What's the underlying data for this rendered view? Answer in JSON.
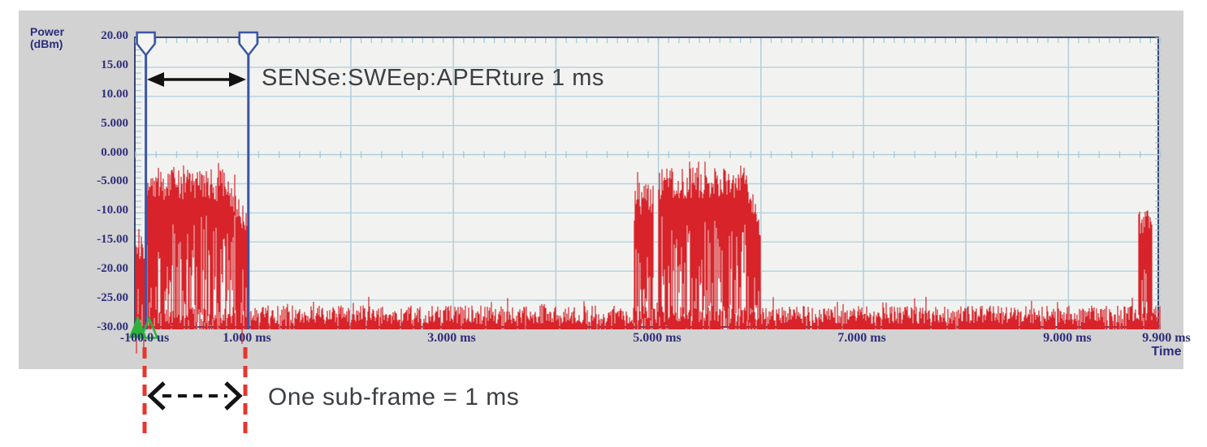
{
  "chart_data": {
    "type": "line",
    "title": "",
    "ylabel": "Power (dBm)",
    "ylabel_lines": [
      "Power",
      "(dBm)"
    ],
    "xlabel": "Time",
    "ylim_dbm": [
      -30,
      20
    ],
    "xlim_ms": [
      -0.1,
      9.9
    ],
    "y_tick_step_db": 5,
    "y_ticks": [
      "20.00",
      "15.00",
      "10.00",
      "5.000",
      "0.000",
      "-5.000",
      "-10.00",
      "-15.00",
      "-20.00",
      "-25.00",
      "-30.00"
    ],
    "x_ticks": [
      {
        "label": "-100.0 us",
        "t_ms": -0.1
      },
      {
        "label": "1.000 ms",
        "t_ms": 1.0
      },
      {
        "label": "3.000 ms",
        "t_ms": 3.0
      },
      {
        "label": "5.000 ms",
        "t_ms": 5.0
      },
      {
        "label": "7.000 ms",
        "t_ms": 7.0
      },
      {
        "label": "9.000 ms",
        "t_ms": 9.0
      },
      {
        "label": "9.900 ms",
        "t_ms": 9.9
      }
    ],
    "x_grid_ms": [
      1,
      2,
      3,
      4,
      5,
      6,
      7,
      8,
      9
    ],
    "minor_x_tick_ms": 0.1,
    "minor_y_tick_db": 1,
    "zero_line_cross_step_ms": 0.2,
    "grid_on": true,
    "colors": {
      "trace": "#d8232a",
      "grid": "#b4d0de",
      "minor_tick": "#a6c9da",
      "border": "#39456f",
      "plot_bg": "#f2f3f0",
      "panel_bg": "#d2d2d2",
      "gate": "#3c55a5",
      "trigger_marker": "#2eb13c",
      "axis_text": "#2e2e7a"
    },
    "gates": {
      "positions_ms": [
        0.0,
        1.0
      ],
      "flag_shape": "pennant"
    },
    "trigger_markers": {
      "t_ms": 0.0,
      "level_dbm": -27,
      "styles": [
        "filled",
        "outline"
      ]
    },
    "noise_floor_dbm": -27.5,
    "segments": [
      {
        "t0": -0.1,
        "t1": 0.0,
        "kind": "burst",
        "top0": -16.0,
        "top1": -16.0,
        "sd": 2.2,
        "peak": -13.0
      },
      {
        "t0": 0.0,
        "t1": 0.78,
        "kind": "burst",
        "top0": -5.2,
        "top1": -5.2,
        "sd": 2.8,
        "peak": -1.6
      },
      {
        "t0": 0.78,
        "t1": 1.0,
        "kind": "burst",
        "top0": -5.5,
        "top1": -12.5,
        "sd": 2.2,
        "peak": -4.0
      },
      {
        "t0": 1.0,
        "t1": 4.76,
        "kind": "floor"
      },
      {
        "t0": 4.76,
        "t1": 4.95,
        "kind": "burst",
        "top0": -8.5,
        "top1": -7.5,
        "sd": 3.0,
        "peak": -4.0
      },
      {
        "t0": 4.95,
        "t1": 5.0,
        "kind": "floor"
      },
      {
        "t0": 5.0,
        "t1": 5.88,
        "kind": "burst",
        "top0": -5.0,
        "top1": -5.0,
        "sd": 2.8,
        "peak": -1.6
      },
      {
        "t0": 5.88,
        "t1": 6.0,
        "kind": "burst",
        "top0": -6.0,
        "top1": -14.0,
        "sd": 2.2,
        "peak": -5.0
      },
      {
        "t0": 6.0,
        "t1": 9.68,
        "kind": "floor"
      },
      {
        "t0": 9.68,
        "t1": 9.82,
        "kind": "burst",
        "top0": -12.0,
        "top1": -11.0,
        "sd": 1.8,
        "peak": -9.0
      },
      {
        "t0": 9.82,
        "t1": 9.9,
        "kind": "floor"
      }
    ]
  },
  "annotations": {
    "aperture": {
      "label": "SENSe:SWEep:APERture 1 ms",
      "span_ms": [
        0.0,
        1.0
      ]
    },
    "subframe": {
      "label": "One sub-frame = 1 ms",
      "span_ms": [
        0.0,
        1.0
      ],
      "line_color": "#e6362d"
    }
  }
}
